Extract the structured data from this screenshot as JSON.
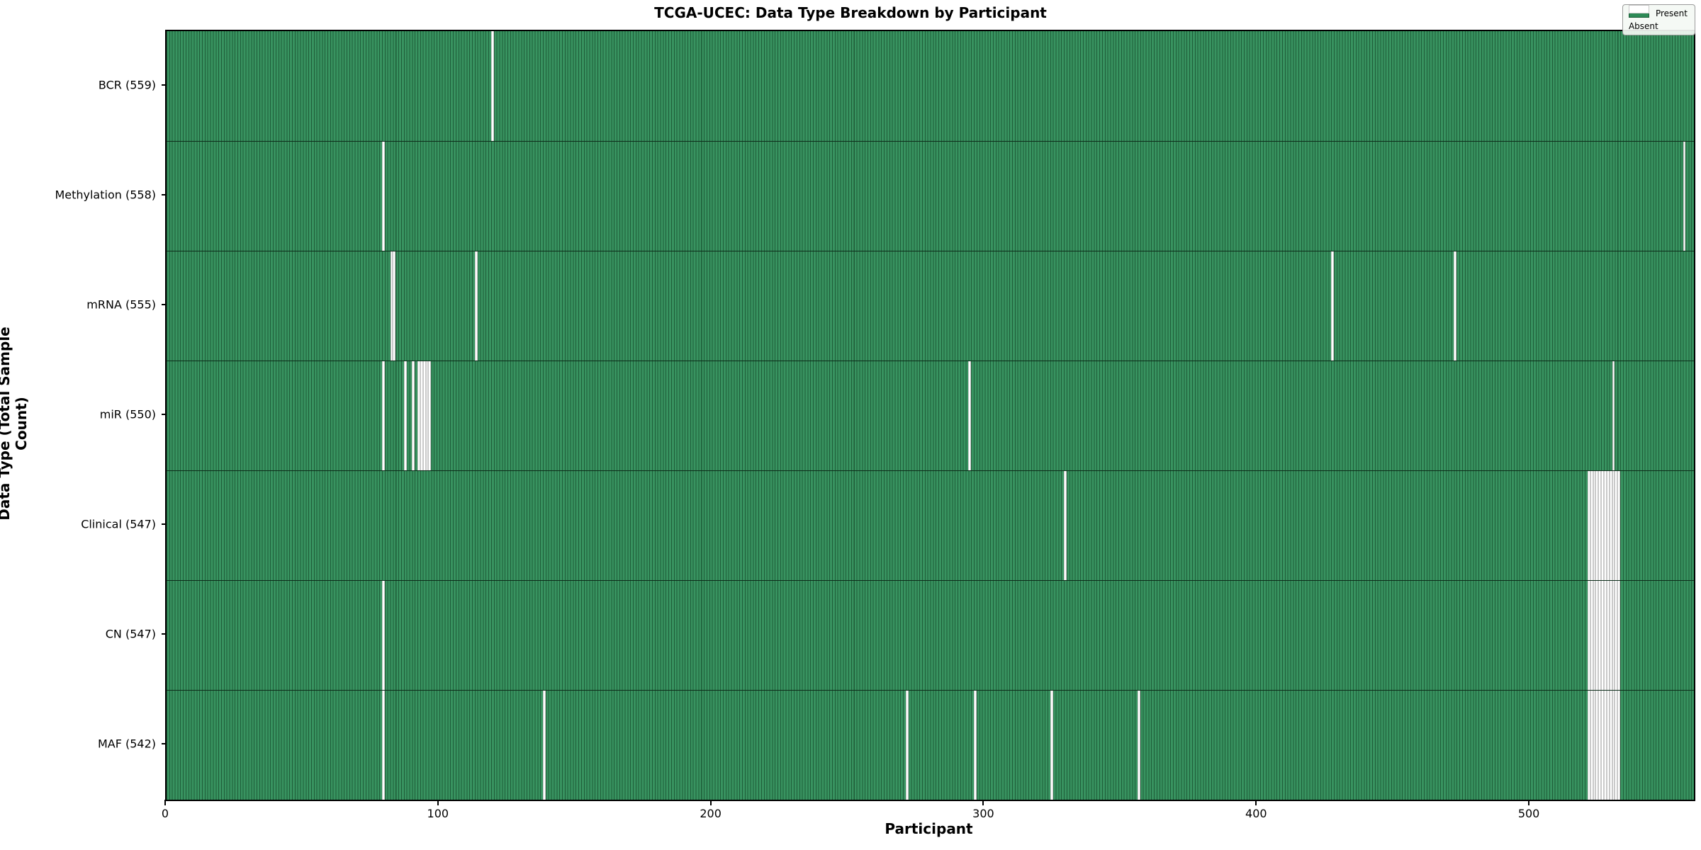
{
  "figure": {
    "title": "TCGA-UCEC: Data Type Breakdown by Participant",
    "xlabel": "Participant",
    "ylabel": "Data Type (Total Sample Count)"
  },
  "legend": {
    "present_label": "Present",
    "absent_label": "Absent"
  },
  "colors": {
    "present_fill": "#389360",
    "present_edge": "#1e5c38",
    "absent_fill": "#ffffff",
    "absent_edge": "#c9c9c9"
  },
  "chart_data": {
    "type": "heatmap",
    "title": "TCGA-UCEC: Data Type Breakdown by Participant",
    "xlabel": "Participant",
    "ylabel": "Data Type (Total Sample Count)",
    "legend": [
      "Present",
      "Absent"
    ],
    "legend_position": "upper right",
    "x_range": [
      0,
      560
    ],
    "x_ticks": [
      0,
      100,
      200,
      300,
      400,
      500
    ],
    "cell_states": [
      "present",
      "absent"
    ],
    "rows": [
      {
        "name": "BCR",
        "label": "BCR (559)",
        "present_count": 559,
        "absent": [
          119
        ]
      },
      {
        "name": "Methylation",
        "label": "Methylation (558)",
        "present_count": 558,
        "absent": [
          79,
          556
        ]
      },
      {
        "name": "mRNA",
        "label": "mRNA (555)",
        "present_count": 555,
        "absent": [
          82,
          83,
          113,
          427,
          472
        ]
      },
      {
        "name": "miR",
        "label": "miR (550)",
        "present_count": 550,
        "absent": [
          79,
          87,
          90,
          92,
          93,
          94,
          95,
          96,
          294,
          530
        ]
      },
      {
        "name": "Clinical",
        "label": "Clinical (547)",
        "present_count": 547,
        "absent": [
          329,
          521,
          522,
          523,
          524,
          525,
          526,
          527,
          528,
          529,
          530,
          531,
          532
        ]
      },
      {
        "name": "CN",
        "label": "CN (547)",
        "present_count": 547,
        "absent": [
          79,
          521,
          522,
          523,
          524,
          525,
          526,
          527,
          528,
          529,
          530,
          531,
          532
        ]
      },
      {
        "name": "MAF",
        "label": "MAF (542)",
        "present_count": 542,
        "absent": [
          79,
          138,
          271,
          296,
          324,
          356,
          521,
          522,
          523,
          524,
          525,
          526,
          527,
          528,
          529,
          530,
          531,
          532
        ]
      }
    ]
  }
}
